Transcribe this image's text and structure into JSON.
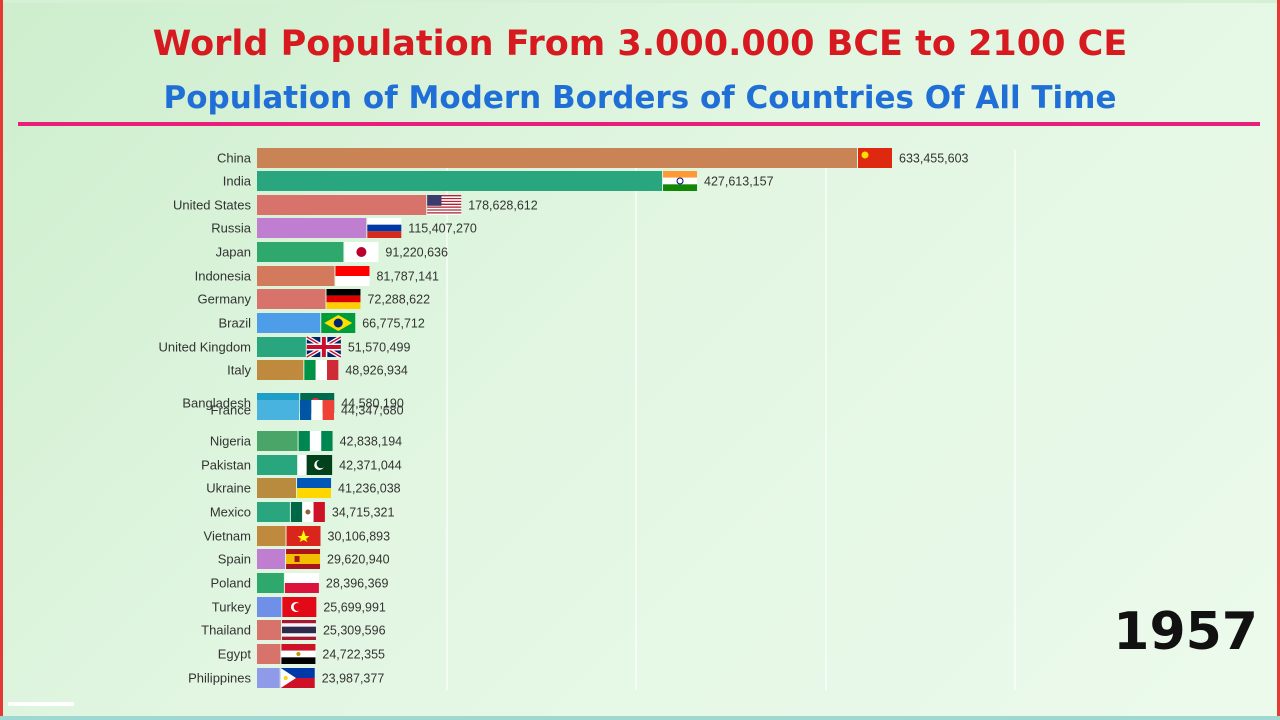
{
  "title": "World Population From 3.000.000 BCE to 2100 CE",
  "subtitle": "Population of Modern Borders of Countries Of All Time",
  "year": "1957",
  "chart_data": {
    "type": "bar",
    "orientation": "horizontal",
    "title": "World Population From 3.000.000 BCE to 2100 CE",
    "subtitle": "Population of Modern Borders of Countries Of All Time",
    "xlim": [
      0,
      633455603
    ],
    "grid": true,
    "items": [
      {
        "name": "China",
        "value": 633455603,
        "label": "633,455,603",
        "color": "#c98354"
      },
      {
        "name": "India",
        "value": 427613157,
        "label": "427,613,157",
        "color": "#2aa67f"
      },
      {
        "name": "United States",
        "value": 178628612,
        "label": "178,628,612",
        "color": "#d8736c"
      },
      {
        "name": "Russia",
        "value": 115407270,
        "label": "115,407,270",
        "color": "#c07ed0"
      },
      {
        "name": "Japan",
        "value": 91220636,
        "label": "91,220,636",
        "color": "#2ea86d"
      },
      {
        "name": "Indonesia",
        "value": 81787141,
        "label": "81,787,141",
        "color": "#d47a5c"
      },
      {
        "name": "Germany",
        "value": 72288622,
        "label": "72,288,622",
        "color": "#d8736c"
      },
      {
        "name": "Brazil",
        "value": 66775712,
        "label": "66,775,712",
        "color": "#4e9de8"
      },
      {
        "name": "United Kingdom",
        "value": 51570499,
        "label": "51,570,499",
        "color": "#2aa67f"
      },
      {
        "name": "Italy",
        "value": 48926934,
        "label": "48,926,934",
        "color": "#c08a3e"
      },
      {
        "name": "Bangladesh",
        "value": 44580190,
        "label": "44,580,190",
        "color": "#1e9ec9"
      },
      {
        "name": "France",
        "value": 44347680,
        "label": "44,347,680",
        "color": "#49b3e0"
      },
      {
        "name": "Nigeria",
        "value": 42838194,
        "label": "42,838,194",
        "color": "#4aa668"
      },
      {
        "name": "Pakistan",
        "value": 42371044,
        "label": "42,371,044",
        "color": "#2aa67f"
      },
      {
        "name": "Ukraine",
        "value": 41236038,
        "label": "41,236,038",
        "color": "#b98b3e"
      },
      {
        "name": "Mexico",
        "value": 34715321,
        "label": "34,715,321",
        "color": "#2aa67f"
      },
      {
        "name": "Vietnam",
        "value": 30106893,
        "label": "30,106,893",
        "color": "#c08a3e"
      },
      {
        "name": "Spain",
        "value": 29620940,
        "label": "29,620,940",
        "color": "#c07ed0"
      },
      {
        "name": "Poland",
        "value": 28396369,
        "label": "28,396,369",
        "color": "#2ea86d"
      },
      {
        "name": "Turkey",
        "value": 25699991,
        "label": "25,699,991",
        "color": "#6f8fe8"
      },
      {
        "name": "Thailand",
        "value": 25309596,
        "label": "25,309,596",
        "color": "#d8736c"
      },
      {
        "name": "Egypt",
        "value": 24722355,
        "label": "24,722,355",
        "color": "#d8736c"
      },
      {
        "name": "Philippines",
        "value": 23987377,
        "label": "23,987,377",
        "color": "#8f9be8"
      }
    ]
  }
}
